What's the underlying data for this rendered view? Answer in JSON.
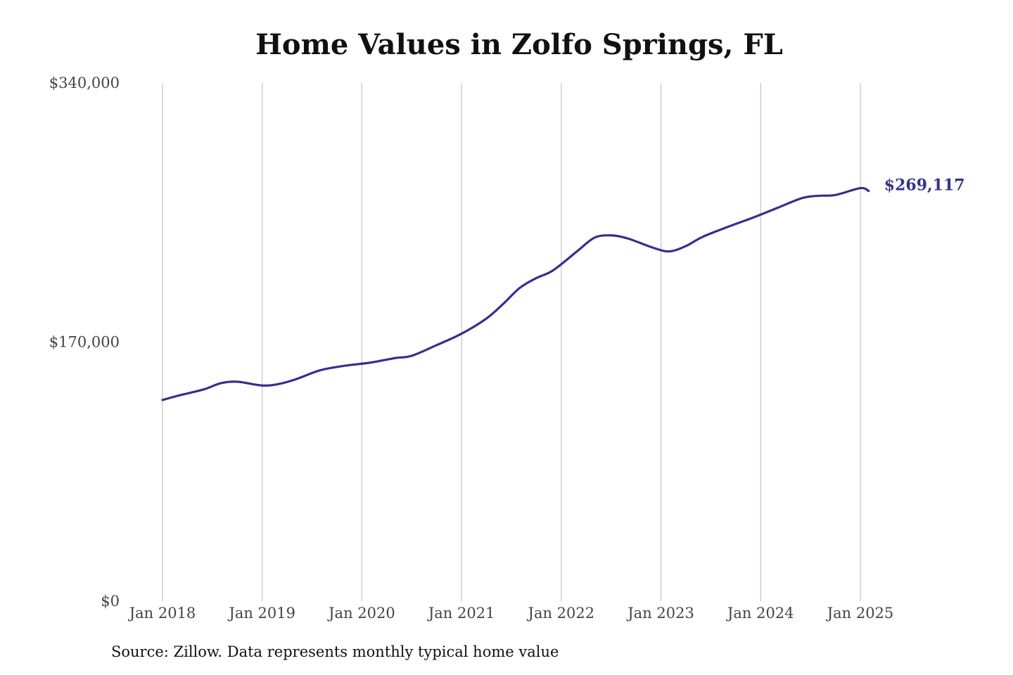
{
  "chart_data": {
    "type": "line",
    "title": "Home Values in Zolfo Springs, FL",
    "source_note": "Source: Zillow. Data represents monthly typical home value",
    "xlabel": "",
    "ylabel": "",
    "ylim": [
      0,
      340000
    ],
    "y_ticks": [
      {
        "value": 0,
        "label": "$0"
      },
      {
        "value": 170000,
        "label": "$170,000"
      },
      {
        "value": 340000,
        "label": "$340,000"
      }
    ],
    "x_ticks": [
      {
        "value": "2018-01",
        "label": "Jan 2018"
      },
      {
        "value": "2019-01",
        "label": "Jan 2019"
      },
      {
        "value": "2020-01",
        "label": "Jan 2020"
      },
      {
        "value": "2021-01",
        "label": "Jan 2021"
      },
      {
        "value": "2022-01",
        "label": "Jan 2022"
      },
      {
        "value": "2023-01",
        "label": "Jan 2023"
      },
      {
        "value": "2024-01",
        "label": "Jan 2024"
      },
      {
        "value": "2025-01",
        "label": "Jan 2025"
      }
    ],
    "x_range": [
      "2018-01",
      "2025-02"
    ],
    "grid": {
      "vertical": true,
      "horizontal": false
    },
    "line_color": "#34318a",
    "end_label": "$269,117",
    "series": [
      {
        "x": [
          "2018-01",
          "2018-03",
          "2018-06",
          "2018-08",
          "2018-10",
          "2019-01",
          "2019-03",
          "2019-05",
          "2019-08",
          "2019-11",
          "2020-02",
          "2020-05",
          "2020-07",
          "2020-10",
          "2021-01",
          "2021-04",
          "2021-06",
          "2021-08",
          "2021-10",
          "2021-12",
          "2022-03",
          "2022-05",
          "2022-07",
          "2022-09",
          "2022-12",
          "2023-02",
          "2023-04",
          "2023-06",
          "2023-09",
          "2023-12",
          "2024-03",
          "2024-06",
          "2024-08",
          "2024-10",
          "2025-01",
          "2025-02"
        ],
        "values": [
          132000,
          135000,
          139000,
          143000,
          144000,
          141500,
          142500,
          145500,
          151500,
          154500,
          156500,
          159500,
          161000,
          168000,
          175500,
          185500,
          195000,
          205500,
          212000,
          217000,
          230000,
          238500,
          240000,
          238000,
          232000,
          229500,
          233000,
          239000,
          245500,
          251500,
          258000,
          264500,
          266000,
          266500,
          271000,
          269117
        ]
      }
    ]
  }
}
